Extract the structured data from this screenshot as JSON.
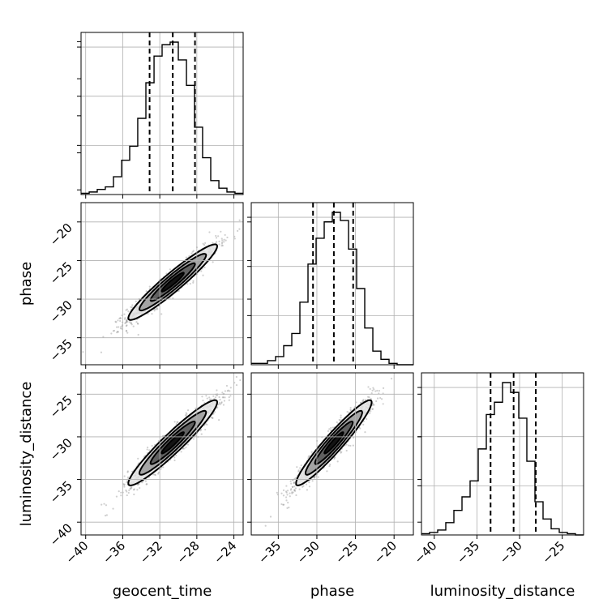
{
  "chart_data": {
    "type": "corner",
    "parameters": [
      "geocent_time",
      "phase",
      "luminosity_distance"
    ],
    "axis_labels": {
      "geocent_time": "geocent_time",
      "phase": "phase",
      "luminosity_distance": "luminosity_distance"
    },
    "ranges": {
      "geocent_time": [
        -40.5,
        -23
      ],
      "phase": [
        -38.5,
        -17.5
      ],
      "luminosity_distance": [
        -41.5,
        -22.5
      ]
    },
    "ticks": {
      "geocent_time": [
        -40,
        -36,
        -32,
        -28,
        -24
      ],
      "phase": [
        -35,
        -30,
        -25,
        -20
      ],
      "luminosity_distance": [
        -40,
        -35,
        -30,
        -25
      ]
    },
    "tick_labels": {
      "geocent_time": [
        "−40",
        "−36",
        "−32",
        "−28",
        "−24"
      ],
      "phase": [
        "−35",
        "−30",
        "−25",
        "−20"
      ],
      "luminosity_distance": [
        "−40",
        "−35",
        "−30",
        "−25"
      ]
    },
    "quantiles": {
      "geocent_time": [
        -33.1,
        -30.6,
        -28.2
      ],
      "phase": [
        -30.5,
        -27.8,
        -25.3
      ],
      "luminosity_distance": [
        -33.4,
        -30.7,
        -28.1
      ]
    },
    "histograms": {
      "geocent_time": {
        "bin_edges": [
          -40.5,
          -39.62,
          -38.75,
          -37.88,
          -37.0,
          -36.12,
          -35.25,
          -34.38,
          -33.5,
          -32.62,
          -31.75,
          -30.88,
          -30.0,
          -29.12,
          -28.25,
          -27.38,
          -26.5,
          -25.62,
          -24.75,
          -23.88,
          -23.0
        ],
        "counts": [
          1,
          2,
          4,
          6,
          14,
          27,
          38,
          60,
          88,
          109,
          118,
          120,
          106,
          86,
          53,
          29,
          11,
          5,
          2,
          1
        ]
      },
      "phase": {
        "bin_edges": [
          -38.5,
          -37.45,
          -36.4,
          -35.35,
          -34.3,
          -33.25,
          -32.2,
          -31.15,
          -30.1,
          -29.05,
          -28.0,
          -26.95,
          -25.9,
          -24.85,
          -23.8,
          -22.75,
          -21.7,
          -20.65,
          -19.6,
          -18.55,
          -17.5
        ],
        "counts": [
          1,
          1,
          3,
          6,
          14,
          23,
          46,
          74,
          93,
          105,
          112,
          106,
          85,
          56,
          27,
          10,
          4,
          1,
          0,
          0
        ]
      },
      "luminosity_distance": {
        "bin_edges": [
          -41.5,
          -40.55,
          -39.6,
          -38.65,
          -37.7,
          -36.75,
          -35.8,
          -34.85,
          -33.9,
          -32.95,
          -32.0,
          -31.05,
          -30.1,
          -29.15,
          -28.2,
          -27.25,
          -26.3,
          -25.35,
          -24.4,
          -23.45,
          -22.5
        ],
        "counts": [
          1,
          2,
          4,
          10,
          20,
          31,
          44,
          70,
          98,
          108,
          124,
          116,
          95,
          60,
          27,
          13,
          5,
          2,
          1,
          0
        ]
      }
    },
    "pairs": [
      {
        "x": "geocent_time",
        "y": "phase",
        "center": [
          -30.6,
          -27.8
        ],
        "sd": [
          2.4,
          2.45
        ],
        "corr": 0.95
      },
      {
        "x": "geocent_time",
        "y": "luminosity_distance",
        "center": [
          -30.6,
          -30.7
        ],
        "sd": [
          2.4,
          2.5
        ],
        "corr": 0.95
      },
      {
        "x": "phase",
        "y": "luminosity_distance",
        "center": [
          -27.8,
          -30.7
        ],
        "sd": [
          2.45,
          2.5
        ],
        "corr": 0.95
      }
    ],
    "contour_levels_sigma": [
      0.5,
      1.0,
      1.5,
      2.0
    ],
    "grid": true
  }
}
